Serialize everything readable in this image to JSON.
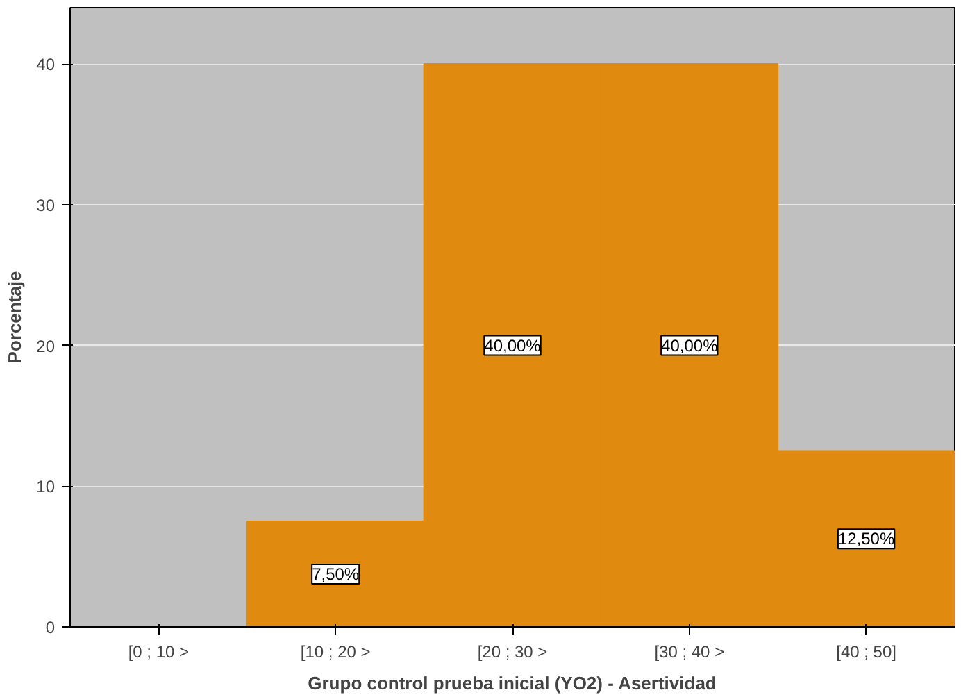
{
  "chart_data": {
    "type": "bar",
    "xlabel": "Grupo control prueba inicial (YO2) - Asertividad",
    "ylabel": "Porcentaje",
    "categories": [
      "[0 ; 10 >",
      "[10 ; 20 >",
      "[20 ; 30 >",
      "[30 ; 40 >",
      "[40 ; 50]"
    ],
    "values": [
      0,
      7.5,
      40,
      40,
      12.5
    ],
    "value_labels": [
      null,
      "7,50%",
      "40,00%",
      "40,00%",
      "12,50%"
    ],
    "color": "#e08a10",
    "ylim": [
      0,
      44
    ],
    "yticks": [
      0,
      10,
      20,
      30,
      40
    ],
    "grid": "y"
  }
}
